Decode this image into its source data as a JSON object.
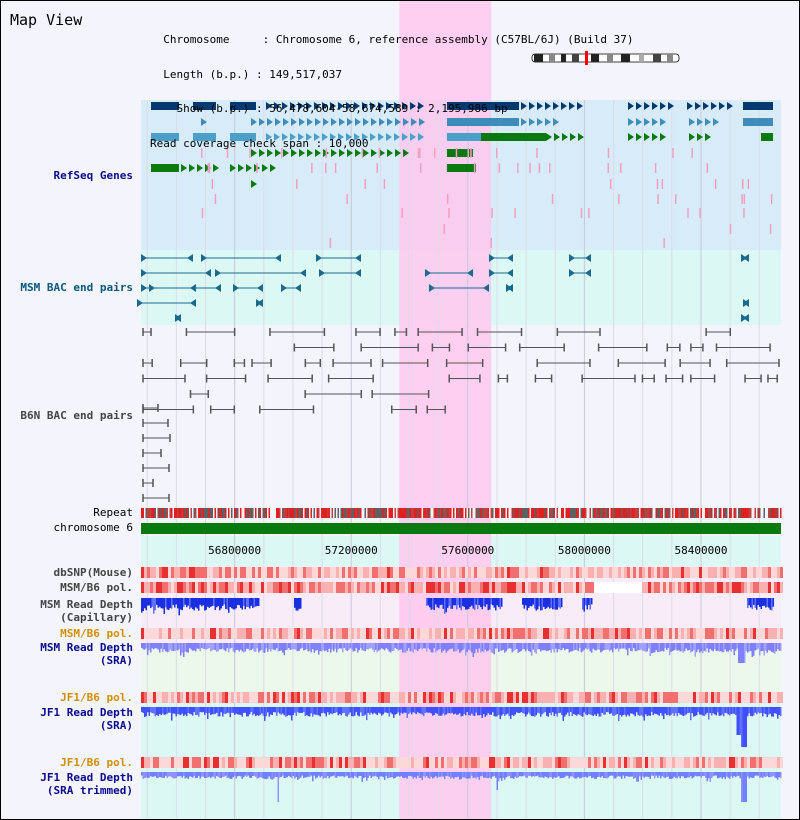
{
  "header": {
    "title": "Map View",
    "info_lines": [
      "  Chromosome     : Chromosome 6, reference assembly (C57BL/6J) (Build 37)",
      "  Length (b.p.) : 149,517,037",
      "    Show (b.p.) : 56,478,604-58,674,589 : 2,195,986 bp",
      "Read coverage check span : 10,000"
    ]
  },
  "tracks": {
    "refseq": {
      "label": "RefSeq Genes",
      "color": "#0a0a8c"
    },
    "msm_bac": {
      "label": "MSM BAC end pairs",
      "color": "#06587a"
    },
    "b6n_bac": {
      "label": "B6N BAC end pairs",
      "color": "#444444"
    },
    "repeat": {
      "label": "Repeat",
      "color": "#000000"
    },
    "chromosome": {
      "label": "chromosome 6",
      "color": "#000000"
    },
    "dbsnp": {
      "label": "dbSNP(Mouse)",
      "color": "#444444"
    },
    "msm_b6_pol": {
      "label": "MSM/B6 pol.",
      "color": "#444444"
    },
    "msm_read_depth_cap": {
      "label_line1": "MSM Read Depth",
      "label_line2": "(Capillary)",
      "color": "#444444"
    },
    "msm_b6_pol2": {
      "label": "MSM/B6 pol.",
      "color": "#d09000"
    },
    "msm_read_depth_sra": {
      "label_line1": "MSM Read Depth",
      "label_line2": "(SRA)",
      "color": "#0a0a8c"
    },
    "jf1_b6_pol": {
      "label": "JF1/B6 pol.",
      "color": "#d09000"
    },
    "jf1_read_depth_sra": {
      "label_line1": "JF1 Read Depth",
      "label_line2": "(SRA)",
      "color": "#0a0a8c"
    },
    "jf1_b6_pol2": {
      "label": "JF1/B6 pol.",
      "color": "#d09000"
    },
    "jf1_read_depth_trim": {
      "label_line1": "JF1 Read Depth",
      "label_line2": "(SRA trimmed)",
      "color": "#0a0a8c"
    }
  },
  "axis": {
    "range": [
      56478604,
      58674589
    ],
    "ticks": [
      {
        "value": 56800000,
        "label": "56800000"
      },
      {
        "value": 57200000,
        "label": "57200000"
      },
      {
        "value": 57600000,
        "label": "57600000"
      },
      {
        "value": 58000000,
        "label": "58000000"
      },
      {
        "value": 58400000,
        "label": "58400000"
      }
    ]
  },
  "highlight": {
    "start": 57365000,
    "end": 57680000,
    "color": "#ffc8ee"
  },
  "colors": {
    "refseq_bg": "#d7ecf8",
    "msm_bac_bg": "#dcf8f4",
    "b6n_bg": "#f4f4fc",
    "gene_dark": "#063a6e",
    "gene_mid": "#3f8cb8",
    "gene_light": "#4aa0c8",
    "gene_green": "#0a7a10",
    "gene_pink": "#f2a0c0",
    "msm_bac": "#1a6a8e",
    "b6n_bac": "#555555",
    "chromosome": "#0a7a10",
    "polymorphism": "#e83030",
    "depth": "#3040ff",
    "depth_light": "#8080ff"
  }
}
